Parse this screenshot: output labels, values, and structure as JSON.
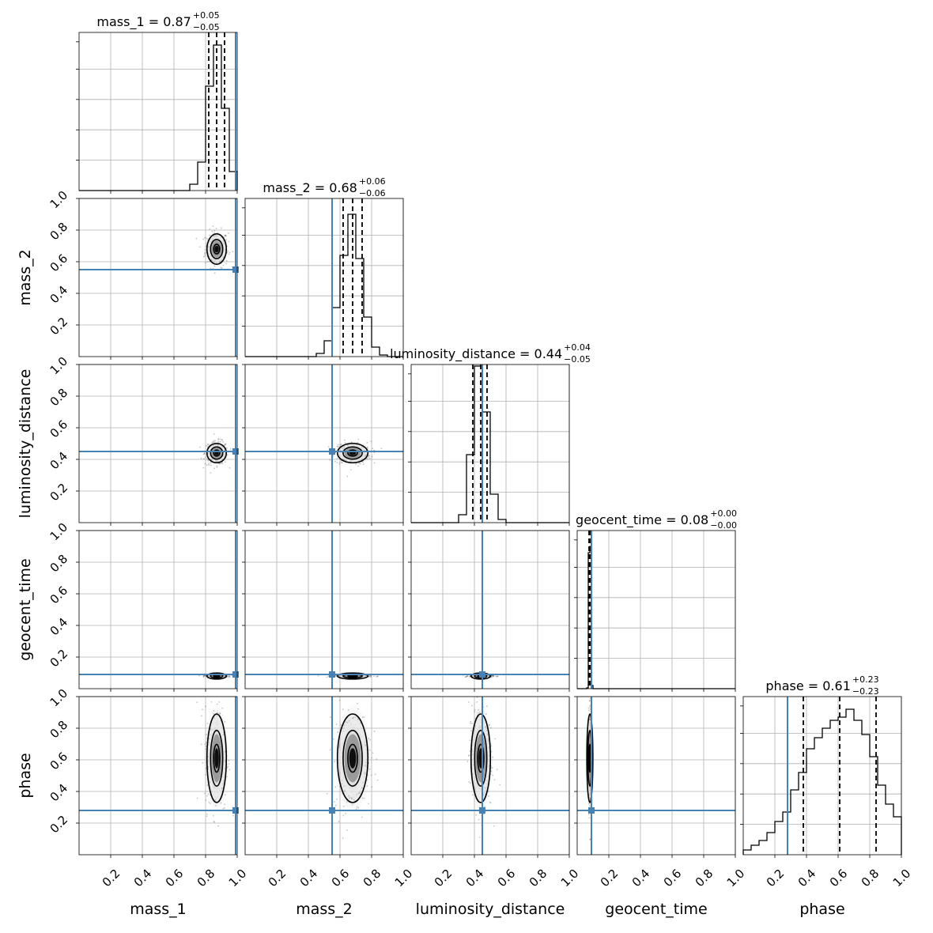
{
  "chart_data": {
    "type": "corner",
    "parameters": [
      "mass_1",
      "mass_2",
      "luminosity_distance",
      "geocent_time",
      "phase"
    ],
    "axis_labels": [
      "mass_1",
      "mass_2",
      "luminosity_distance",
      "geocent_time",
      "phase"
    ],
    "range": [
      0,
      1
    ],
    "ticks": [
      0.2,
      0.4,
      0.6,
      0.8,
      1.0
    ],
    "tick_labels": [
      "0.2",
      "0.4",
      "0.6",
      "0.8",
      "1.0"
    ],
    "grid": true,
    "truth_color": "#4682b4",
    "line_color": "#000000",
    "truths": [
      0.99,
      0.55,
      0.45,
      0.09,
      0.28
    ],
    "medians": [
      0.87,
      0.68,
      0.44,
      0.08,
      0.61
    ],
    "quantiles_lower": [
      0.82,
      0.62,
      0.39,
      0.075,
      0.38
    ],
    "quantiles_upper": [
      0.92,
      0.74,
      0.48,
      0.085,
      0.84
    ],
    "titles": [
      {
        "prefix": "mass_1 = 0.87",
        "plus": "+0.05",
        "minus": "−0.05"
      },
      {
        "prefix": "mass_2 = 0.68",
        "plus": "+0.06",
        "minus": "−0.06"
      },
      {
        "prefix": "luminosity_distance = 0.44",
        "plus": "+0.04",
        "minus": "−0.05"
      },
      {
        "prefix": "geocent_time = 0.08",
        "plus": "+0.00",
        "minus": "−0.00"
      },
      {
        "prefix": "phase = 0.61",
        "plus": "+0.23",
        "minus": "−0.23"
      }
    ],
    "histograms": [
      {
        "bin_edges": [
          0.7,
          0.75,
          0.8,
          0.85,
          0.9,
          0.95,
          1.0
        ],
        "values": [
          0.04,
          0.18,
          0.66,
          0.92,
          0.52,
          0.12
        ]
      },
      {
        "bin_edges": [
          0.45,
          0.5,
          0.55,
          0.6,
          0.65,
          0.7,
          0.75,
          0.8,
          0.85,
          0.9
        ],
        "values": [
          0.02,
          0.1,
          0.31,
          0.64,
          0.9,
          0.62,
          0.25,
          0.06,
          0.01
        ]
      },
      {
        "bin_edges": [
          0.3,
          0.35,
          0.4,
          0.45,
          0.5,
          0.55,
          0.6
        ],
        "values": [
          0.05,
          0.43,
          0.99,
          0.7,
          0.18,
          0.02
        ]
      },
      {
        "bin_edges": [
          0.06,
          0.07,
          0.08,
          0.09,
          0.1
        ],
        "values": [
          0.005,
          0.86,
          0.9,
          0.02
        ]
      },
      {
        "bin_edges": [
          0.0,
          0.05,
          0.1,
          0.15,
          0.2,
          0.25,
          0.3,
          0.35,
          0.4,
          0.45,
          0.5,
          0.55,
          0.6,
          0.65,
          0.7,
          0.75,
          0.8,
          0.85,
          0.9,
          0.95,
          1.0
        ],
        "values": [
          0.03,
          0.06,
          0.09,
          0.14,
          0.21,
          0.27,
          0.41,
          0.52,
          0.67,
          0.74,
          0.8,
          0.85,
          0.87,
          0.92,
          0.85,
          0.76,
          0.62,
          0.44,
          0.32,
          0.24
        ]
      }
    ],
    "widths": [
      0.035,
      0.055,
      0.035,
      0.004,
      0.16
    ]
  }
}
